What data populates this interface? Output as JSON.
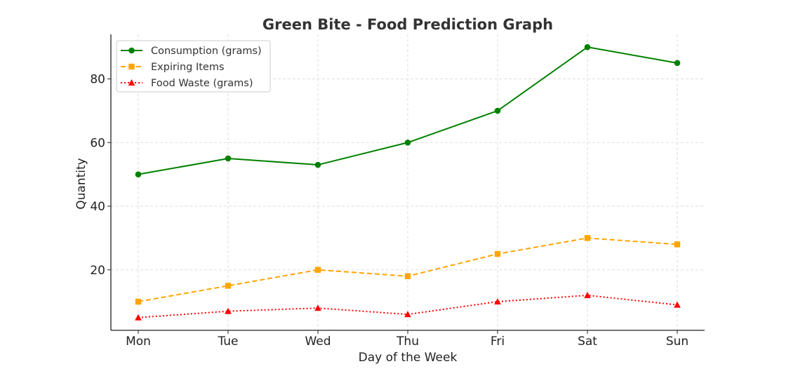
{
  "chart_data": {
    "type": "line",
    "title": "Green Bite - Food Prediction Graph",
    "xlabel": "Day of the Week",
    "ylabel": "Quantity",
    "categories": [
      "Mon",
      "Tue",
      "Wed",
      "Thu",
      "Fri",
      "Sat",
      "Sun"
    ],
    "ylim": [
      1,
      94
    ],
    "yticks": [
      20,
      40,
      60,
      80
    ],
    "grid": true,
    "legend_position": "top-left",
    "series": [
      {
        "name": "Consumption (grams)",
        "values": [
          50,
          55,
          53,
          60,
          70,
          90,
          85
        ],
        "color": "#008000",
        "line_style": "solid",
        "marker": "circle"
      },
      {
        "name": "Expiring Items",
        "values": [
          10,
          15,
          20,
          18,
          25,
          30,
          28
        ],
        "color": "#FFA500",
        "line_style": "dashed",
        "marker": "square"
      },
      {
        "name": "Food Waste (grams)",
        "values": [
          5,
          7,
          8,
          6,
          10,
          12,
          9
        ],
        "color": "#FF0000",
        "line_style": "dotted",
        "marker": "triangle"
      }
    ]
  }
}
